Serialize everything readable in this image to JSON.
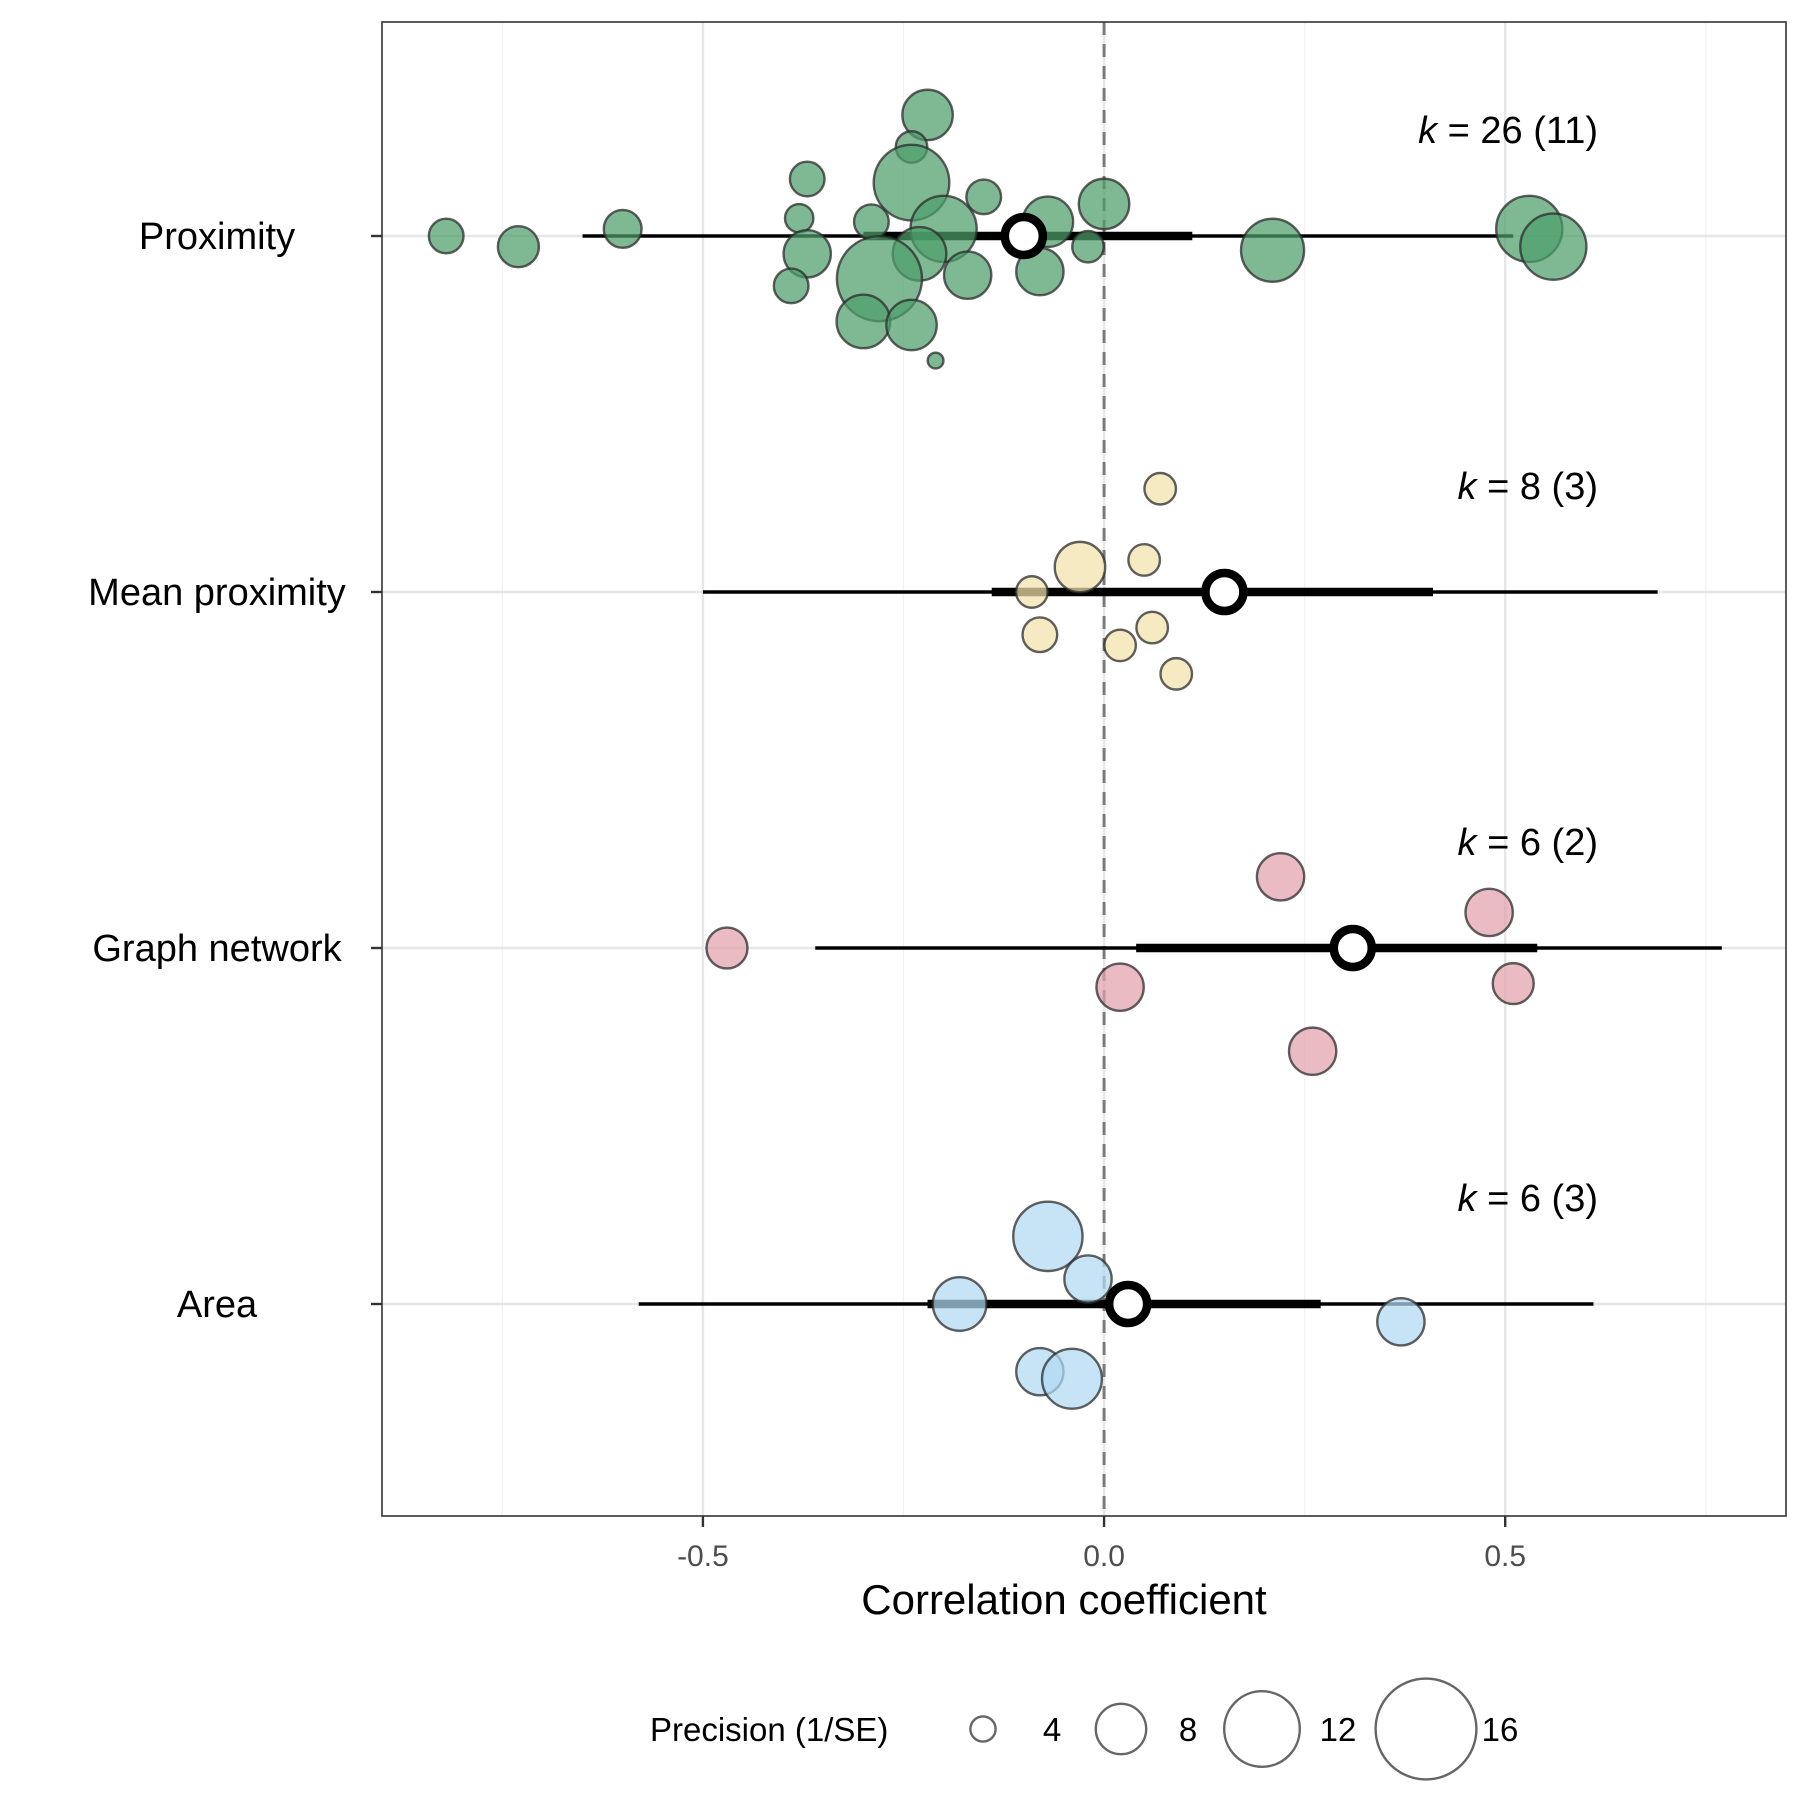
{
  "chart_data": {
    "type": "scatter",
    "subtype": "forest-orchard-plot",
    "xlabel": "Correlation coefficient",
    "xlim": [
      -0.9,
      0.85
    ],
    "x_ticks": [
      {
        "value": -0.5,
        "label": "-0.5"
      },
      {
        "value": 0.0,
        "label": "0.0"
      },
      {
        "value": 0.5,
        "label": "0.5"
      }
    ],
    "reference_line": {
      "x": 0,
      "style": "dashed"
    },
    "grid": true,
    "categories": [
      "Proximity",
      "Mean proximity",
      "Graph network",
      "Area"
    ],
    "groups": [
      {
        "name": "Proximity",
        "color": "#4d9e6b",
        "k_prefix": "k",
        "k_text": " = 26 (11)",
        "estimate": -0.1,
        "ci": [
          -0.3,
          0.11
        ],
        "pi": [
          -0.65,
          0.51
        ],
        "points": [
          {
            "x": -0.22,
            "jitter": 0.34,
            "precision": 8
          },
          {
            "x": -0.24,
            "jitter": 0.25,
            "precision": 5
          },
          {
            "x": -0.37,
            "jitter": 0.16,
            "precision": 5.5
          },
          {
            "x": -0.24,
            "jitter": 0.15,
            "precision": 12
          },
          {
            "x": -0.15,
            "jitter": 0.11,
            "precision": 5.5
          },
          {
            "x": 0.0,
            "jitter": 0.09,
            "precision": 8
          },
          {
            "x": -0.38,
            "jitter": 0.05,
            "precision": 4.5
          },
          {
            "x": -0.29,
            "jitter": 0.04,
            "precision": 5.5
          },
          {
            "x": -0.07,
            "jitter": 0.04,
            "precision": 8
          },
          {
            "x": -0.2,
            "jitter": 0.02,
            "precision": 10.5
          },
          {
            "x": -0.82,
            "jitter": 0.0,
            "precision": 5.5
          },
          {
            "x": -0.6,
            "jitter": 0.02,
            "precision": 6
          },
          {
            "x": -0.73,
            "jitter": -0.03,
            "precision": 6.5
          },
          {
            "x": 0.53,
            "jitter": 0.02,
            "precision": 10.5
          },
          {
            "x": 0.56,
            "jitter": -0.03,
            "precision": 10.5
          },
          {
            "x": -0.02,
            "jitter": -0.03,
            "precision": 5
          },
          {
            "x": 0.21,
            "jitter": -0.04,
            "precision": 10
          },
          {
            "x": -0.37,
            "jitter": -0.05,
            "precision": 7.5
          },
          {
            "x": -0.23,
            "jitter": -0.05,
            "precision": 8.5
          },
          {
            "x": -0.08,
            "jitter": -0.1,
            "precision": 7.5
          },
          {
            "x": -0.17,
            "jitter": -0.11,
            "precision": 7.5
          },
          {
            "x": -0.28,
            "jitter": -0.12,
            "precision": 13.5
          },
          {
            "x": -0.39,
            "jitter": -0.14,
            "precision": 5.5
          },
          {
            "x": -0.3,
            "jitter": -0.24,
            "precision": 8.5
          },
          {
            "x": -0.24,
            "jitter": -0.25,
            "precision": 8
          },
          {
            "x": -0.21,
            "jitter": -0.35,
            "precision": 2.5
          }
        ]
      },
      {
        "name": "Mean proximity",
        "color": "#f2e2aa",
        "k_prefix": "k",
        "k_text": " = 8 (3)",
        "estimate": 0.15,
        "ci": [
          -0.14,
          0.41
        ],
        "pi": [
          -0.5,
          0.69
        ],
        "points": [
          {
            "x": 0.07,
            "jitter": 0.29,
            "precision": 5
          },
          {
            "x": 0.05,
            "jitter": 0.09,
            "precision": 5
          },
          {
            "x": -0.03,
            "jitter": 0.07,
            "precision": 8
          },
          {
            "x": -0.09,
            "jitter": 0.0,
            "precision": 5
          },
          {
            "x": 0.06,
            "jitter": -0.1,
            "precision": 5
          },
          {
            "x": -0.08,
            "jitter": -0.12,
            "precision": 5.5
          },
          {
            "x": 0.02,
            "jitter": -0.15,
            "precision": 5
          },
          {
            "x": 0.09,
            "jitter": -0.23,
            "precision": 5
          }
        ]
      },
      {
        "name": "Graph network",
        "color": "#e3a1ad",
        "k_prefix": "k",
        "k_text": " = 6 (2)",
        "estimate": 0.31,
        "ci": [
          0.04,
          0.54
        ],
        "pi": [
          -0.36,
          0.77
        ],
        "points": [
          {
            "x": 0.22,
            "jitter": 0.2,
            "precision": 7.5
          },
          {
            "x": 0.48,
            "jitter": 0.1,
            "precision": 7.5
          },
          {
            "x": -0.47,
            "jitter": 0.0,
            "precision": 6.5
          },
          {
            "x": 0.02,
            "jitter": -0.11,
            "precision": 7.5
          },
          {
            "x": 0.51,
            "jitter": -0.1,
            "precision": 6.5
          },
          {
            "x": 0.26,
            "jitter": -0.29,
            "precision": 7.5
          }
        ]
      },
      {
        "name": "Area",
        "color": "#b0daf2",
        "k_prefix": "k",
        "k_text": " = 6 (3)",
        "estimate": 0.03,
        "ci": [
          -0.22,
          0.27
        ],
        "pi": [
          -0.58,
          0.61
        ],
        "points": [
          {
            "x": -0.07,
            "jitter": 0.19,
            "precision": 11
          },
          {
            "x": -0.02,
            "jitter": 0.07,
            "precision": 7.5
          },
          {
            "x": -0.18,
            "jitter": 0.0,
            "precision": 8.5
          },
          {
            "x": 0.37,
            "jitter": -0.05,
            "precision": 7.5
          },
          {
            "x": -0.08,
            "jitter": -0.19,
            "precision": 7.5
          },
          {
            "x": -0.04,
            "jitter": -0.21,
            "precision": 9.5
          }
        ]
      }
    ],
    "legend": {
      "position": "bottom",
      "title": "Precision (1/SE)",
      "values": [
        4,
        8,
        12,
        16
      ],
      "labels": [
        "4",
        "8",
        "12",
        "16"
      ]
    }
  }
}
